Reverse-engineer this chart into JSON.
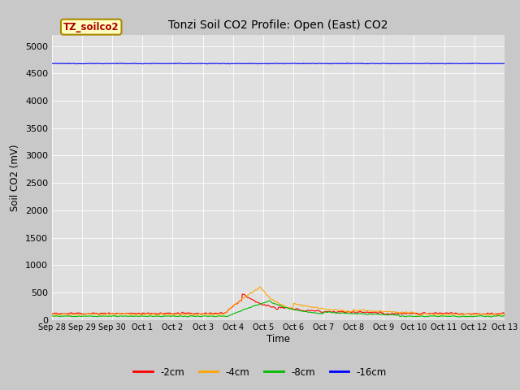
{
  "title": "Tonzi Soil CO2 Profile: Open (East) CO2",
  "ylabel": "Soil CO2 (mV)",
  "xlabel": "Time",
  "ylim": [
    0,
    5200
  ],
  "yticks": [
    0,
    500,
    1000,
    1500,
    2000,
    2500,
    3000,
    3500,
    4000,
    4500,
    5000
  ],
  "fig_bg_color": "#c8c8c8",
  "plot_bg_color": "#e0e0e0",
  "legend_label": "TZ_soilco2",
  "series_labels": [
    "-2cm",
    "-4cm",
    "-8cm",
    "-16cm"
  ],
  "series_colors": [
    "#ff0000",
    "#ffa500",
    "#00bb00",
    "#0000ff"
  ],
  "num_points": 600,
  "xtick_labels": [
    "Sep 28",
    "Sep 29",
    "Sep 30",
    "Oct 1",
    "Oct 2",
    "Oct 3",
    "Oct 4",
    "Oct 5",
    "Oct 6",
    "Oct 7",
    "Oct 8",
    "Oct 9",
    "Oct 10",
    "Oct 11",
    "Oct 12",
    "Oct 13"
  ],
  "line_width": 0.8
}
